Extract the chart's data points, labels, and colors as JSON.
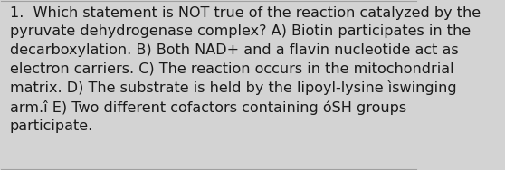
{
  "text": "1.  Which statement is NOT true of the reaction catalyzed by the\npyruvate dehydrogenase complex? A) Biotin participates in the\ndecarboxylation. B) Both NAD+ and a flavin nucleotide act as\nelectron carriers. C) The reaction occurs in the mitochondrial\nmatrix. D) The substrate is held by the lipoyl-lysine ìswinging\narm.î E) Two different cofactors containing óSH groups\nparticipate.",
  "background_color": "#d3d3d3",
  "text_color": "#1a1a1a",
  "font_size": 11.5,
  "fig_width": 5.58,
  "fig_height": 1.88,
  "border_color": "#a0a0a0",
  "border_linewidth": 0.8
}
